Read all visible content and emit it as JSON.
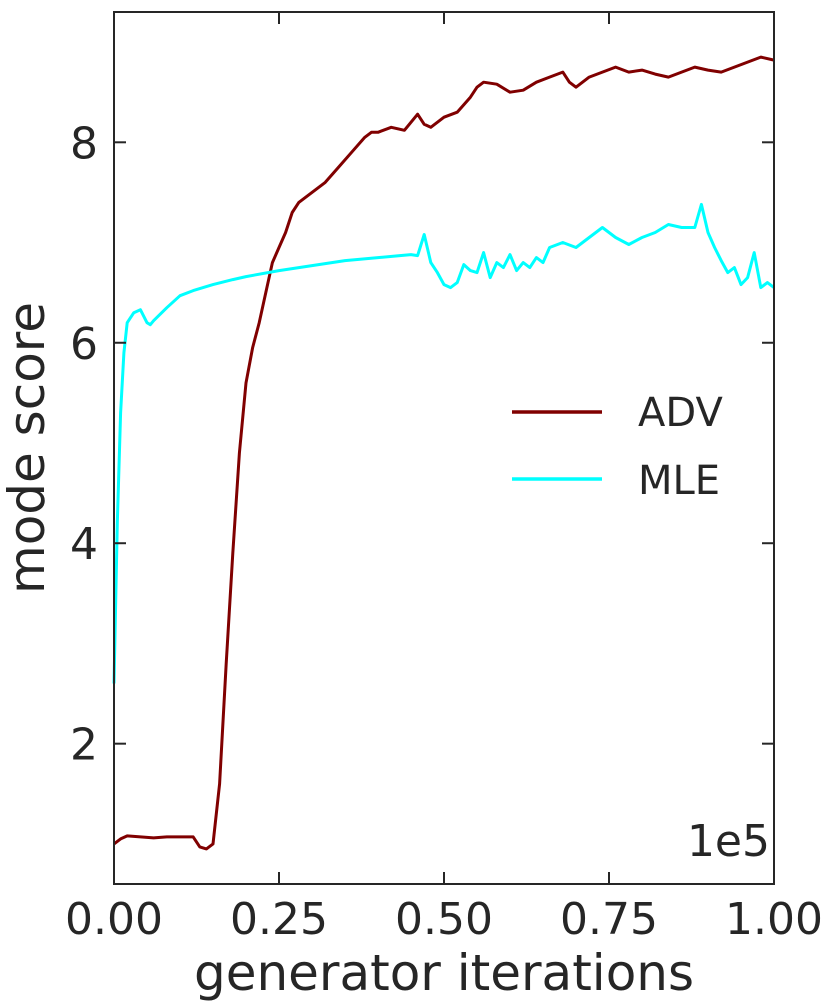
{
  "chart_data": {
    "type": "line",
    "xlabel": "generator iterations",
    "ylabel": "mode score",
    "x_multiplier_label": "1e5",
    "xlim": [
      0.0,
      1.0
    ],
    "ylim": [
      0.6,
      9.3
    ],
    "xticks": [
      0.0,
      0.25,
      0.5,
      0.75,
      1.0
    ],
    "xtick_labels": [
      "0.00",
      "0.25",
      "0.50",
      "0.75",
      "1.00"
    ],
    "yticks": [
      2,
      4,
      6,
      8
    ],
    "ytick_labels": [
      "2",
      "4",
      "6",
      "8"
    ],
    "grid": false,
    "legend_position": "center-right",
    "series": [
      {
        "name": "ADV",
        "color": "#800000",
        "x": [
          0.0,
          0.01,
          0.02,
          0.04,
          0.06,
          0.08,
          0.1,
          0.12,
          0.13,
          0.14,
          0.15,
          0.16,
          0.17,
          0.18,
          0.19,
          0.2,
          0.21,
          0.22,
          0.23,
          0.24,
          0.25,
          0.26,
          0.27,
          0.28,
          0.29,
          0.3,
          0.32,
          0.34,
          0.36,
          0.38,
          0.39,
          0.4,
          0.42,
          0.44,
          0.46,
          0.47,
          0.48,
          0.5,
          0.52,
          0.54,
          0.55,
          0.56,
          0.58,
          0.6,
          0.62,
          0.64,
          0.66,
          0.68,
          0.69,
          0.7,
          0.72,
          0.74,
          0.76,
          0.78,
          0.8,
          0.82,
          0.84,
          0.86,
          0.88,
          0.9,
          0.92,
          0.94,
          0.96,
          0.98,
          1.0
        ],
        "y": [
          1.0,
          1.05,
          1.08,
          1.07,
          1.06,
          1.07,
          1.07,
          1.07,
          0.97,
          0.95,
          1.0,
          1.6,
          2.8,
          3.9,
          4.9,
          5.6,
          5.95,
          6.2,
          6.5,
          6.8,
          6.95,
          7.1,
          7.3,
          7.4,
          7.45,
          7.5,
          7.6,
          7.75,
          7.9,
          8.05,
          8.1,
          8.1,
          8.15,
          8.12,
          8.28,
          8.18,
          8.15,
          8.25,
          8.3,
          8.45,
          8.55,
          8.6,
          8.58,
          8.5,
          8.52,
          8.6,
          8.65,
          8.7,
          8.6,
          8.55,
          8.65,
          8.7,
          8.75,
          8.7,
          8.72,
          8.68,
          8.65,
          8.7,
          8.75,
          8.72,
          8.7,
          8.75,
          8.8,
          8.85,
          8.82
        ]
      },
      {
        "name": "MLE",
        "color": "#00ffff",
        "x": [
          0.0,
          0.005,
          0.01,
          0.015,
          0.02,
          0.03,
          0.04,
          0.05,
          0.055,
          0.06,
          0.08,
          0.1,
          0.12,
          0.15,
          0.18,
          0.2,
          0.25,
          0.3,
          0.35,
          0.4,
          0.45,
          0.46,
          0.47,
          0.48,
          0.49,
          0.5,
          0.51,
          0.52,
          0.53,
          0.54,
          0.55,
          0.56,
          0.57,
          0.58,
          0.59,
          0.6,
          0.61,
          0.62,
          0.63,
          0.64,
          0.65,
          0.66,
          0.68,
          0.7,
          0.72,
          0.74,
          0.76,
          0.78,
          0.8,
          0.82,
          0.84,
          0.86,
          0.88,
          0.89,
          0.9,
          0.91,
          0.92,
          0.93,
          0.94,
          0.95,
          0.96,
          0.97,
          0.98,
          0.99,
          1.0
        ],
        "y": [
          2.6,
          4.2,
          5.3,
          5.9,
          6.2,
          6.3,
          6.33,
          6.2,
          6.18,
          6.22,
          6.35,
          6.47,
          6.52,
          6.58,
          6.63,
          6.66,
          6.72,
          6.77,
          6.82,
          6.85,
          6.88,
          6.87,
          7.08,
          6.8,
          6.7,
          6.58,
          6.55,
          6.6,
          6.78,
          6.72,
          6.7,
          6.9,
          6.65,
          6.8,
          6.75,
          6.88,
          6.72,
          6.8,
          6.75,
          6.85,
          6.8,
          6.95,
          7.0,
          6.95,
          7.05,
          7.15,
          7.05,
          6.98,
          7.05,
          7.1,
          7.18,
          7.15,
          7.15,
          7.38,
          7.1,
          6.95,
          6.82,
          6.7,
          6.75,
          6.58,
          6.65,
          6.9,
          6.55,
          6.6,
          6.55
        ]
      }
    ]
  }
}
